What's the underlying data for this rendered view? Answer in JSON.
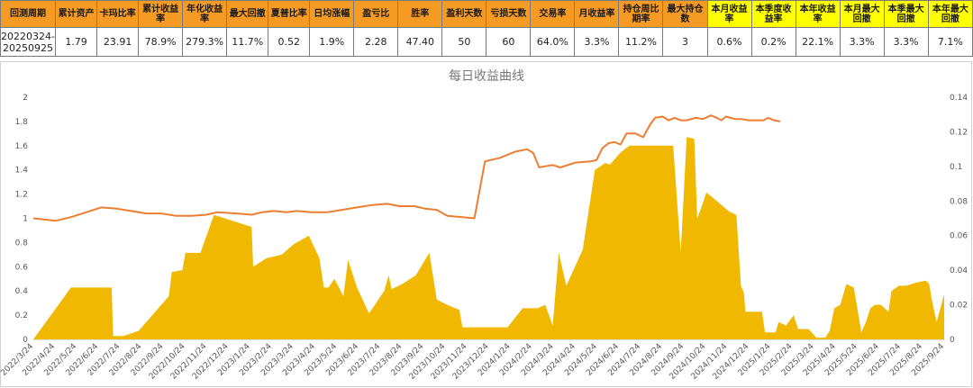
{
  "table": {
    "headers": [
      {
        "label": "回测周期",
        "hl": false
      },
      {
        "label": "累计资产",
        "hl": false
      },
      {
        "label": "卡玛比率",
        "hl": false
      },
      {
        "label": "累计收益率",
        "hl": false
      },
      {
        "label": "年化收益率",
        "hl": false
      },
      {
        "label": "最大回撤",
        "hl": false
      },
      {
        "label": "夏普比率",
        "hl": false
      },
      {
        "label": "日均涨幅",
        "hl": false
      },
      {
        "label": "盈亏比",
        "hl": false
      },
      {
        "label": "胜率",
        "hl": false
      },
      {
        "label": "盈利天数",
        "hl": false
      },
      {
        "label": "亏损天数",
        "hl": false
      },
      {
        "label": "交易率",
        "hl": false
      },
      {
        "label": "月收益率",
        "hl": false
      },
      {
        "label": "持仓周比期率",
        "hl": false
      },
      {
        "label": "最大持仓数",
        "hl": false
      },
      {
        "label": "本月收益率",
        "hl": true
      },
      {
        "label": "本季度收益率",
        "hl": true
      },
      {
        "label": "本年收益率",
        "hl": true
      },
      {
        "label": "本月最大回撤",
        "hl": true
      },
      {
        "label": "本季最大回撤",
        "hl": true
      },
      {
        "label": "本年最大回撤",
        "hl": true
      }
    ],
    "values": [
      "20220324-20250925",
      "1.79",
      "23.91",
      "78.9%",
      "279.3%",
      "11.7%",
      "0.52",
      "1.9%",
      "2.28",
      "47.40",
      "50",
      "60",
      "64.0%",
      "3.3%",
      "11.2%",
      "3",
      "0.6%",
      "0.2%",
      "22.1%",
      "3.3%",
      "3.3%",
      "7.1%"
    ]
  },
  "chart_data": {
    "type": "line",
    "title": "每日收益曲线",
    "x_ticks": [
      "2022/3/24",
      "2022/4/24",
      "2022/5/24",
      "2022/6/24",
      "2022/7/24",
      "2022/8/24",
      "2022/9/24",
      "2022/10/24",
      "2022/11/24",
      "2022/12/24",
      "2023/1/24",
      "2023/2/24",
      "2023/3/24",
      "2023/4/24",
      "2023/5/24",
      "2023/6/24",
      "2023/7/24",
      "2023/8/24",
      "2023/9/24",
      "2023/10/24",
      "2023/11/24",
      "2023/12/24",
      "2024/1/24",
      "2024/2/24",
      "2024/3/24",
      "2024/4/24",
      "2024/5/24",
      "2024/6/24",
      "2024/7/24",
      "2024/8/24",
      "2024/9/24",
      "2024/10/24",
      "2024/11/24",
      "2024/12/24",
      "2025/1/24",
      "2025/2/24",
      "2025/3/24",
      "2025/4/24",
      "2025/5/24",
      "2025/6/24",
      "2025/7/24",
      "2025/8/24",
      "2025/9/24"
    ],
    "y_left": {
      "min": 0,
      "max": 2,
      "ticks": [
        "0",
        "0.2",
        "0.4",
        "0.6",
        "0.8",
        "1",
        "1.2",
        "1.4",
        "1.6",
        "1.8",
        "2"
      ]
    },
    "y_right": {
      "min": 0,
      "max": 0.14,
      "ticks": [
        "0",
        "0.02",
        "0.04",
        "0.06",
        "0.08",
        "0.1",
        "0.12",
        "0.14"
      ]
    },
    "series": [
      {
        "type": "line",
        "axis": "left",
        "color": "#ed7d31",
        "points": [
          [
            0,
            1.0
          ],
          [
            1.5,
            0.98
          ],
          [
            2.5,
            1.01
          ],
          [
            3.5,
            1.05
          ],
          [
            4.5,
            1.09
          ],
          [
            5.5,
            1.08
          ],
          [
            6.5,
            1.06
          ],
          [
            7.5,
            1.04
          ],
          [
            8.5,
            1.04
          ],
          [
            9.5,
            1.02
          ],
          [
            10.5,
            1.02
          ],
          [
            11.5,
            1.03
          ],
          [
            12.2,
            1.05
          ],
          [
            13.5,
            1.04
          ],
          [
            14.5,
            1.03
          ],
          [
            15.2,
            1.05
          ],
          [
            16.0,
            1.06
          ],
          [
            16.8,
            1.05
          ],
          [
            17.5,
            1.06
          ],
          [
            18.5,
            1.05
          ],
          [
            19.5,
            1.05
          ],
          [
            20.5,
            1.07
          ],
          [
            21.5,
            1.09
          ],
          [
            22.5,
            1.11
          ],
          [
            23.5,
            1.12
          ],
          [
            24.3,
            1.1
          ],
          [
            25.3,
            1.1
          ],
          [
            26.0,
            1.08
          ],
          [
            26.8,
            1.07
          ],
          [
            27.5,
            1.02
          ],
          [
            28.5,
            1.01
          ],
          [
            29.3,
            1.0
          ],
          [
            30.0,
            1.47
          ],
          [
            31.0,
            1.5
          ],
          [
            32.0,
            1.55
          ],
          [
            32.8,
            1.57
          ],
          [
            33.2,
            1.54
          ],
          [
            33.6,
            1.42
          ],
          [
            34.0,
            1.43
          ],
          [
            34.5,
            1.44
          ],
          [
            35.0,
            1.42
          ],
          [
            36.0,
            1.46
          ],
          [
            37.0,
            1.47
          ],
          [
            37.4,
            1.48
          ],
          [
            37.8,
            1.58
          ],
          [
            38.2,
            1.62
          ],
          [
            38.6,
            1.63
          ],
          [
            39.0,
            1.61
          ],
          [
            39.4,
            1.7
          ],
          [
            40.0,
            1.7
          ],
          [
            40.5,
            1.67
          ],
          [
            41.0,
            1.78
          ],
          [
            41.3,
            1.83
          ],
          [
            41.8,
            1.84
          ],
          [
            42.2,
            1.81
          ],
          [
            42.6,
            1.83
          ],
          [
            43.0,
            1.81
          ],
          [
            43.4,
            1.81
          ],
          [
            44.0,
            1.83
          ],
          [
            44.5,
            1.82
          ],
          [
            45.0,
            1.85
          ],
          [
            45.4,
            1.83
          ],
          [
            45.7,
            1.81
          ],
          [
            46.0,
            1.84
          ],
          [
            46.3,
            1.83
          ],
          [
            46.6,
            1.82
          ],
          [
            47.0,
            1.82
          ],
          [
            47.5,
            1.81
          ],
          [
            48.0,
            1.81
          ],
          [
            48.5,
            1.81
          ],
          [
            48.8,
            1.83
          ],
          [
            49.2,
            1.81
          ],
          [
            49.6,
            1.8
          ]
        ]
      },
      {
        "type": "area",
        "axis": "right",
        "color": "#f0b800",
        "points": [
          [
            0,
            0
          ],
          [
            2.5,
            0.03
          ],
          [
            5.2,
            0.03
          ],
          [
            5.3,
            0.002
          ],
          [
            6.0,
            0.002
          ],
          [
            7.0,
            0.005
          ],
          [
            9.0,
            0.025
          ],
          [
            9.2,
            0.039
          ],
          [
            9.9,
            0.04
          ],
          [
            10.1,
            0.05
          ],
          [
            11.1,
            0.05
          ],
          [
            12.0,
            0.072
          ],
          [
            14.5,
            0.065
          ],
          [
            14.6,
            0.042
          ],
          [
            15.5,
            0.047
          ],
          [
            16.5,
            0.049
          ],
          [
            17.3,
            0.055
          ],
          [
            18.3,
            0.06
          ],
          [
            19.0,
            0.047
          ],
          [
            19.3,
            0.03
          ],
          [
            19.6,
            0.03
          ],
          [
            20.0,
            0.035
          ],
          [
            20.3,
            0.03
          ],
          [
            20.6,
            0.025
          ],
          [
            20.9,
            0.046
          ],
          [
            21.5,
            0.03
          ],
          [
            22.3,
            0.015
          ],
          [
            23.3,
            0.028
          ],
          [
            23.6,
            0.037
          ],
          [
            23.8,
            0.029
          ],
          [
            24.5,
            0.032
          ],
          [
            25.4,
            0.037
          ],
          [
            26.3,
            0.05
          ],
          [
            26.8,
            0.023
          ],
          [
            27.5,
            0.02
          ],
          [
            28.3,
            0.017
          ],
          [
            28.5,
            0.007
          ],
          [
            29.5,
            0.007
          ],
          [
            30.5,
            0.007
          ],
          [
            31.5,
            0.007
          ],
          [
            32.5,
            0.018
          ],
          [
            33.5,
            0.018
          ],
          [
            34.0,
            0.02
          ],
          [
            34.5,
            0.008
          ],
          [
            34.9,
            0.05
          ],
          [
            35.4,
            0.031
          ],
          [
            36.5,
            0.052
          ],
          [
            37.3,
            0.098
          ],
          [
            38.0,
            0.102
          ],
          [
            38.3,
            0.101
          ],
          [
            39.0,
            0.108
          ],
          [
            39.6,
            0.112
          ],
          [
            41.0,
            0.112
          ],
          [
            42.2,
            0.112
          ],
          [
            42.5,
            0.112
          ],
          [
            43.0,
            0.05
          ],
          [
            43.4,
            0.117
          ],
          [
            43.9,
            0.116
          ],
          [
            44.1,
            0.07
          ],
          [
            44.4,
            0.077
          ],
          [
            44.7,
            0.085
          ],
          [
            45.4,
            0.08
          ],
          [
            46.2,
            0.074
          ],
          [
            46.7,
            0.072
          ],
          [
            47.0,
            0.031
          ],
          [
            47.2,
            0.027
          ],
          [
            47.3,
            0.016
          ],
          [
            48.4,
            0.016
          ],
          [
            48.6,
            0.004
          ],
          [
            49.3,
            0.004
          ],
          [
            49.5,
            0.01
          ],
          [
            50.0,
            0.008
          ],
          [
            50.5,
            0.014
          ],
          [
            50.8,
            0.006
          ],
          [
            51.5,
            0.006
          ],
          [
            52.0,
            0.001
          ],
          [
            52.6,
            0.001
          ],
          [
            52.9,
            0.005
          ],
          [
            53.2,
            0.018
          ],
          [
            53.6,
            0.02
          ],
          [
            54.0,
            0.032
          ],
          [
            54.5,
            0.03
          ],
          [
            55.0,
            0.004
          ],
          [
            55.3,
            0.01
          ],
          [
            55.6,
            0.018
          ],
          [
            55.9,
            0.02
          ],
          [
            56.3,
            0.02
          ],
          [
            56.8,
            0.016
          ],
          [
            57.0,
            0.028
          ],
          [
            57.5,
            0.031
          ],
          [
            58.0,
            0.031
          ],
          [
            58.7,
            0.033
          ],
          [
            59.3,
            0.034
          ],
          [
            59.5,
            0.032
          ],
          [
            59.7,
            0.022
          ],
          [
            60.0,
            0.01
          ],
          [
            60.5,
            0.026
          ]
        ]
      }
    ]
  }
}
